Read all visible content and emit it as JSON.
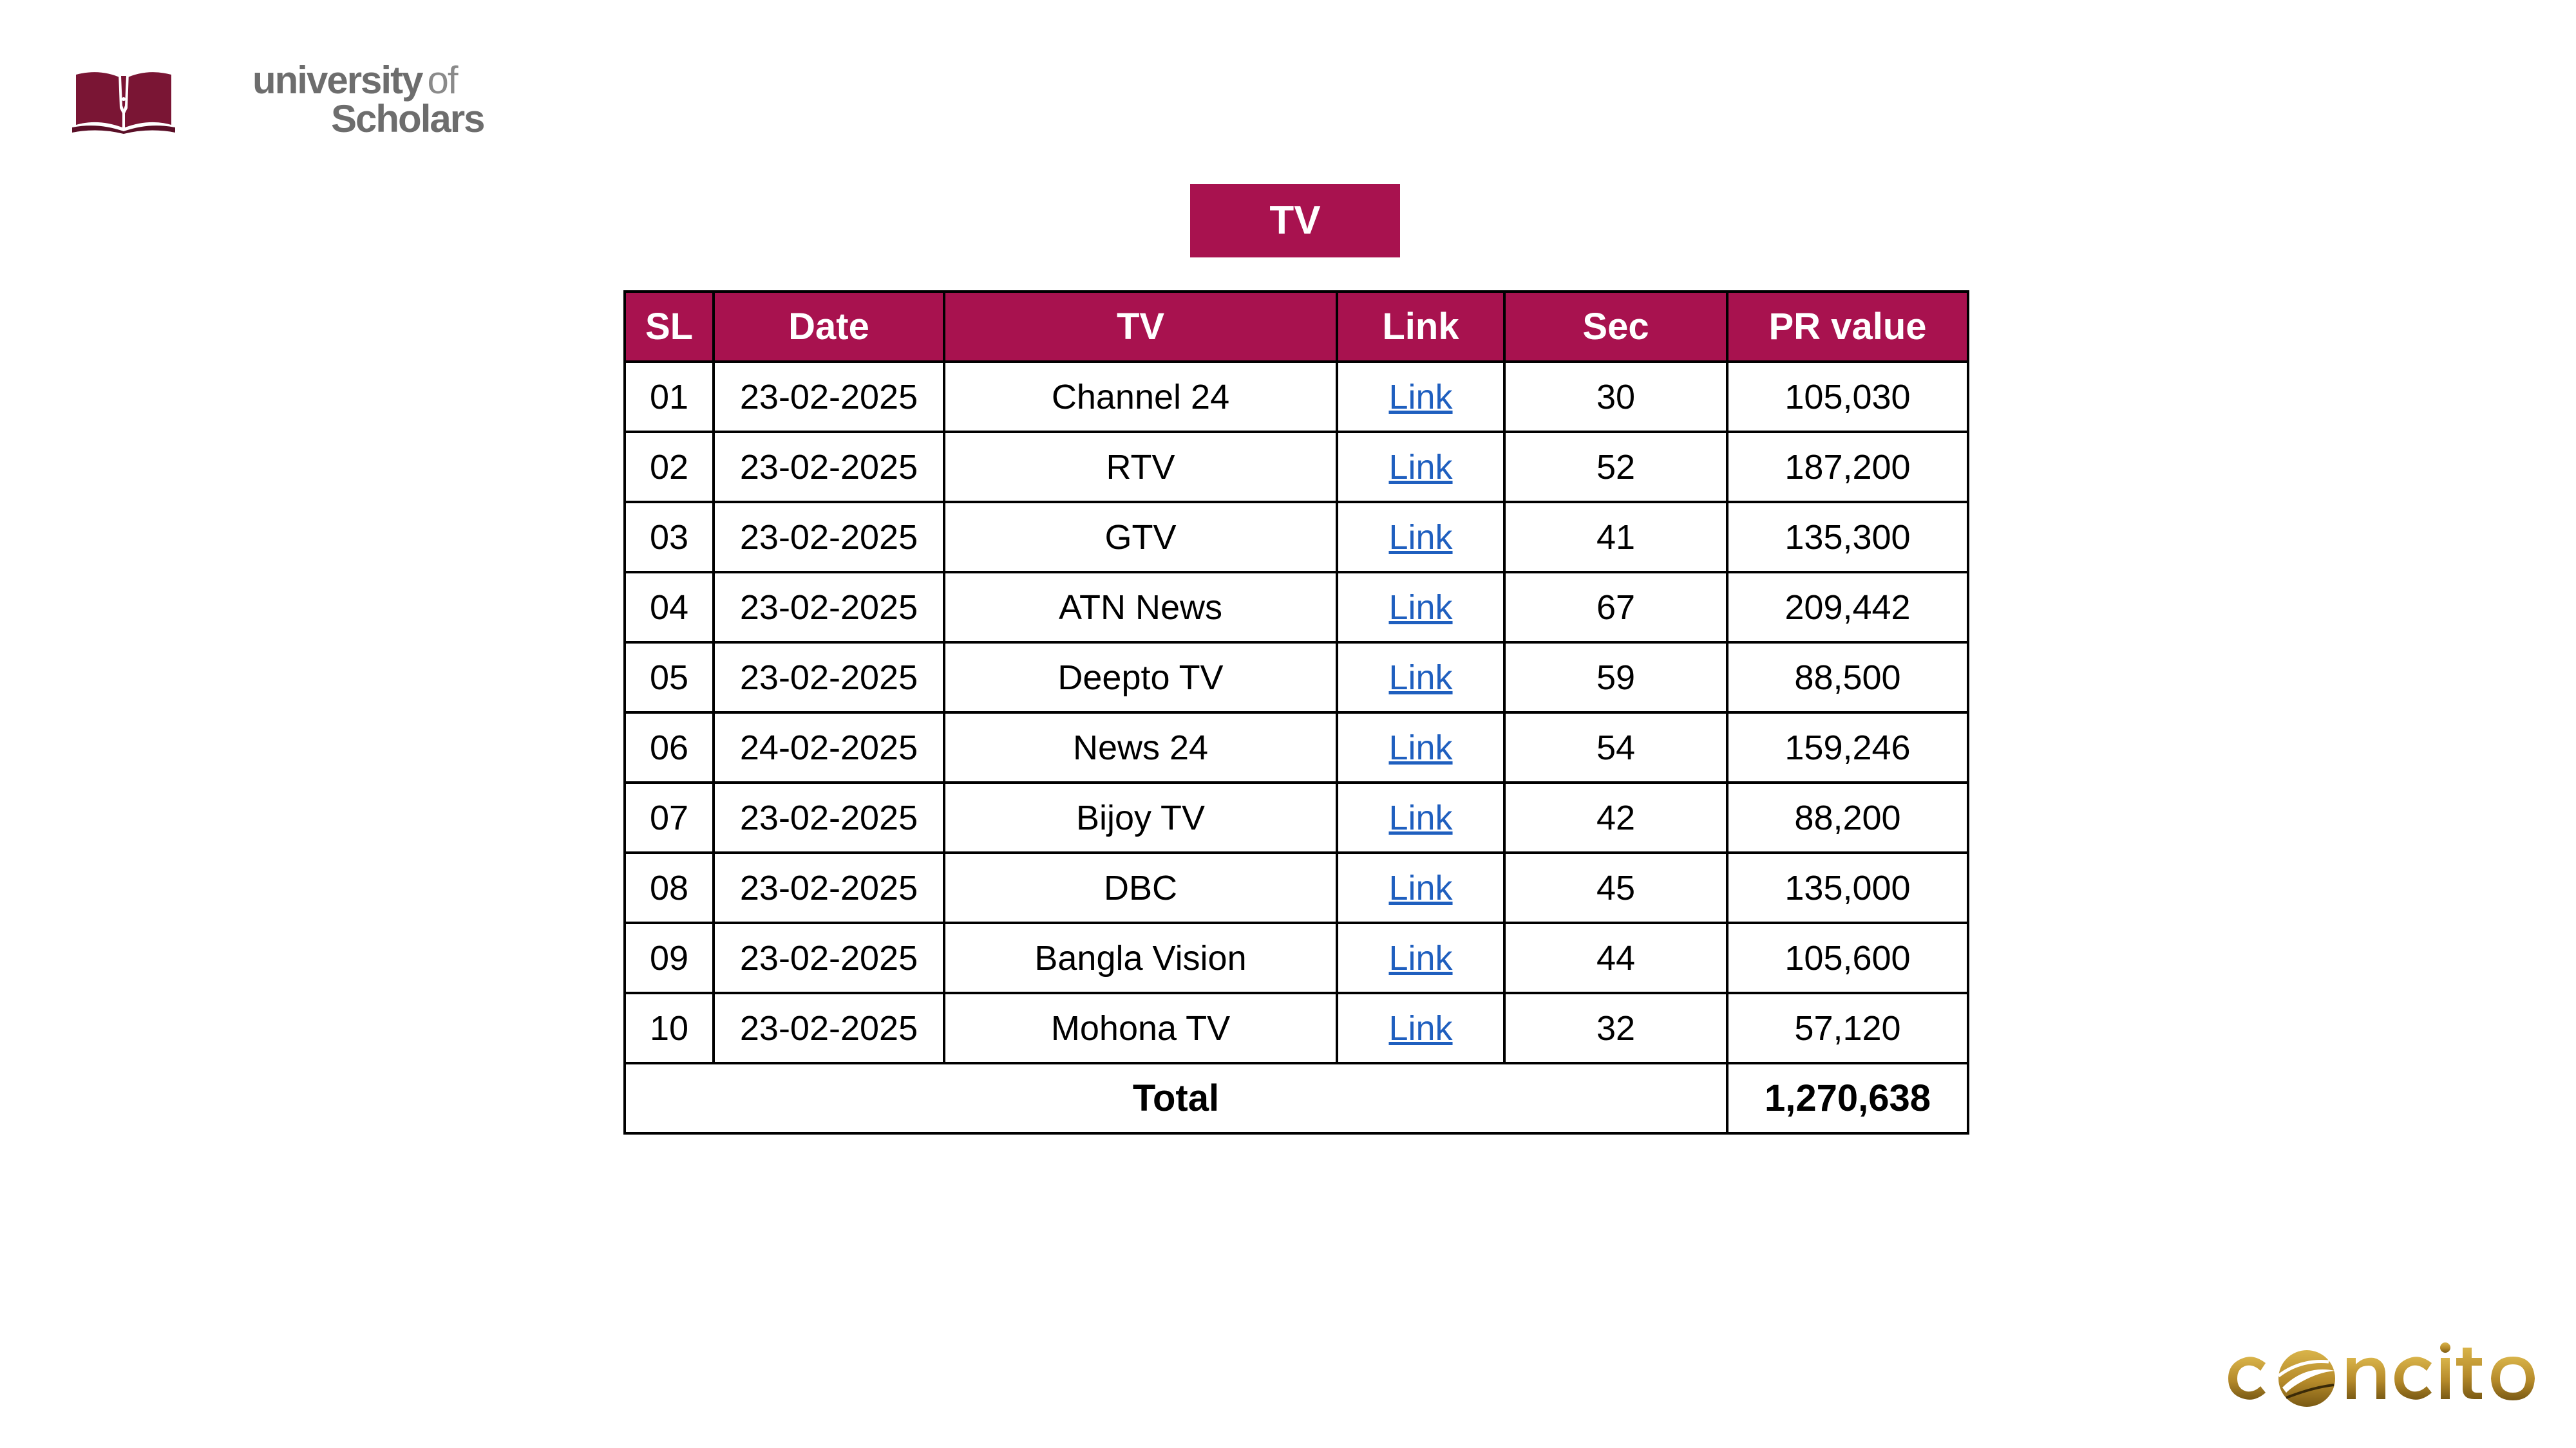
{
  "logo_top_left": {
    "line1_word1": "university",
    "line1_word2": "of",
    "line2": "Scholars",
    "brand_color": "#7a1534"
  },
  "title": "TV",
  "table": {
    "columns": [
      "SL",
      "Date",
      "TV",
      "Link",
      "Sec",
      "PR value"
    ],
    "rows": [
      {
        "sl": "01",
        "date": "23-02-2025",
        "tv": "Channel 24",
        "link": "Link",
        "sec": "30",
        "pr_value": "105,030"
      },
      {
        "sl": "02",
        "date": "23-02-2025",
        "tv": "RTV",
        "link": "Link",
        "sec": "52",
        "pr_value": "187,200"
      },
      {
        "sl": "03",
        "date": "23-02-2025",
        "tv": "GTV",
        "link": "Link",
        "sec": "41",
        "pr_value": "135,300"
      },
      {
        "sl": "04",
        "date": "23-02-2025",
        "tv": "ATN News",
        "link": "Link",
        "sec": "67",
        "pr_value": "209,442"
      },
      {
        "sl": "05",
        "date": "23-02-2025",
        "tv": "Deepto TV",
        "link": "Link",
        "sec": "59",
        "pr_value": "88,500"
      },
      {
        "sl": "06",
        "date": "24-02-2025",
        "tv": "News 24",
        "link": "Link",
        "sec": "54",
        "pr_value": "159,246"
      },
      {
        "sl": "07",
        "date": "23-02-2025",
        "tv": "Bijoy TV",
        "link": "Link",
        "sec": "42",
        "pr_value": "88,200"
      },
      {
        "sl": "08",
        "date": "23-02-2025",
        "tv": "DBC",
        "link": "Link",
        "sec": "45",
        "pr_value": "135,000"
      },
      {
        "sl": "09",
        "date": "23-02-2025",
        "tv": "Bangla Vision",
        "link": "Link",
        "sec": "44",
        "pr_value": "105,600"
      },
      {
        "sl": "10",
        "date": "23-02-2025",
        "tv": "Mohona TV",
        "link": "Link",
        "sec": "32",
        "pr_value": "57,120"
      }
    ],
    "total_label": "Total",
    "total_value": "1,270,638"
  },
  "logo_bottom_right": {
    "wordmark": "concito",
    "brand_color": "#b58a2a"
  },
  "colors": {
    "accent": "#a8124f",
    "link": "#1f5fbf",
    "border": "#000000"
  }
}
